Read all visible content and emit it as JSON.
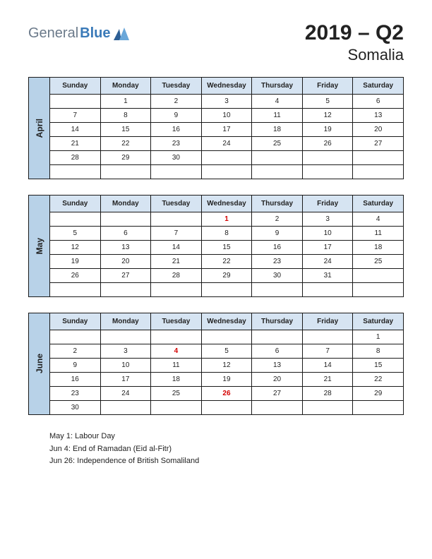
{
  "brand": {
    "part1": "General",
    "part2": "Blue"
  },
  "title": {
    "main": "2019 – Q2",
    "sub": "Somalia"
  },
  "colors": {
    "month_label_bg": "#b8d2e8",
    "day_header_bg": "#d6e4f2",
    "border": "#1a1a1a",
    "holiday_text": "#d40000",
    "logo_gray": "#6b7a8a",
    "logo_blue": "#3a7ab8"
  },
  "day_headers": [
    "Sunday",
    "Monday",
    "Tuesday",
    "Wednesday",
    "Thursday",
    "Friday",
    "Saturday"
  ],
  "months": [
    {
      "name": "April",
      "weeks": [
        [
          "",
          "1",
          "2",
          "3",
          "4",
          "5",
          "6"
        ],
        [
          "7",
          "8",
          "9",
          "10",
          "11",
          "12",
          "13"
        ],
        [
          "14",
          "15",
          "16",
          "17",
          "18",
          "19",
          "20"
        ],
        [
          "21",
          "22",
          "23",
          "24",
          "25",
          "26",
          "27"
        ],
        [
          "28",
          "29",
          "30",
          "",
          "",
          "",
          ""
        ],
        [
          "",
          "",
          "",
          "",
          "",
          "",
          ""
        ]
      ],
      "holidays": []
    },
    {
      "name": "May",
      "weeks": [
        [
          "",
          "",
          "",
          "1",
          "2",
          "3",
          "4"
        ],
        [
          "5",
          "6",
          "7",
          "8",
          "9",
          "10",
          "11"
        ],
        [
          "12",
          "13",
          "14",
          "15",
          "16",
          "17",
          "18"
        ],
        [
          "19",
          "20",
          "21",
          "22",
          "23",
          "24",
          "25"
        ],
        [
          "26",
          "27",
          "28",
          "29",
          "30",
          "31",
          ""
        ],
        [
          "",
          "",
          "",
          "",
          "",
          "",
          ""
        ]
      ],
      "holidays": [
        "1"
      ]
    },
    {
      "name": "June",
      "weeks": [
        [
          "",
          "",
          "",
          "",
          "",
          "",
          "1"
        ],
        [
          "2",
          "3",
          "4",
          "5",
          "6",
          "7",
          "8"
        ],
        [
          "9",
          "10",
          "11",
          "12",
          "13",
          "14",
          "15"
        ],
        [
          "16",
          "17",
          "18",
          "19",
          "20",
          "21",
          "22"
        ],
        [
          "23",
          "24",
          "25",
          "26",
          "27",
          "28",
          "29"
        ],
        [
          "30",
          "",
          "",
          "",
          "",
          "",
          ""
        ]
      ],
      "holidays": [
        "4",
        "26"
      ]
    }
  ],
  "holiday_list": [
    "May 1: Labour Day",
    "Jun 4: End of Ramadan (Eid al-Fitr)",
    "Jun 26: Independence of British Somaliland"
  ]
}
